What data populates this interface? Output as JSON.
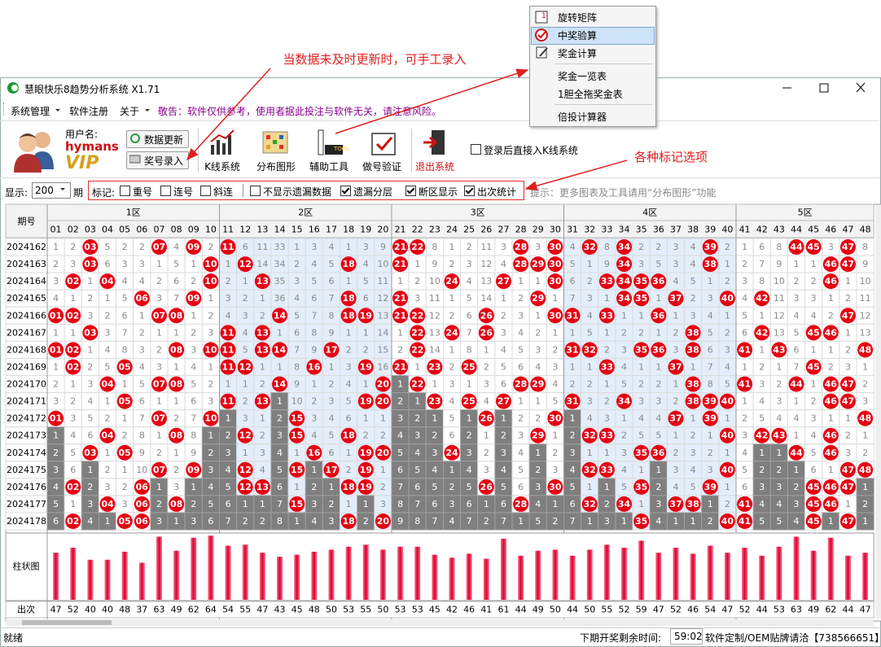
{
  "window": {
    "title": "慧眼快乐8趋势分析系统 X1.71"
  },
  "menu": [
    "系统管理",
    "软件注册",
    "关于"
  ],
  "notice": "敬告：软件仅供参考，使用者据此投注与软件无关，请注意风险。",
  "user": {
    "label": "用户名:",
    "name": "hymans",
    "level": "VIP"
  },
  "buttons": [
    "数据更新",
    "奖号录入"
  ],
  "tools": [
    "K线系统",
    "分布图形",
    "辅助工具",
    "做号验证",
    "退出系统"
  ],
  "login_option": {
    "label": "登录后直接入K线系统",
    "checked": false
  },
  "display": {
    "label": "显示:",
    "periods": 200,
    "unit": "期"
  },
  "marks": {
    "label": "标记:",
    "options": [
      {
        "label": "重号",
        "checked": false
      },
      {
        "label": "连号",
        "checked": false
      },
      {
        "label": "斜连",
        "checked": false
      }
    ]
  },
  "view_options": [
    {
      "label": "不显示遗漏数据",
      "checked": false
    },
    {
      "label": "遗漏分层",
      "checked": true
    },
    {
      "label": "断区显示",
      "checked": true
    },
    {
      "label": "出次统计",
      "checked": true
    }
  ],
  "hint": "提示：更多图表及工具请用“分布图形”功能",
  "table": {
    "period_header": "期号",
    "zones": [
      "1区",
      "2区",
      "3区",
      "4区",
      "5区"
    ],
    "columns": [
      "01",
      "02",
      "03",
      "04",
      "05",
      "06",
      "07",
      "08",
      "09",
      "10",
      "11",
      "12",
      "13",
      "14",
      "15",
      "16",
      "17",
      "18",
      "19",
      "20",
      "21",
      "22",
      "23",
      "24",
      "25",
      "26",
      "27",
      "28",
      "29",
      "30",
      "31",
      "32",
      "33",
      "34",
      "35",
      "36",
      "37",
      "38",
      "39",
      "40",
      "41",
      "42",
      "43",
      "44",
      "45",
      "46",
      "47",
      "48"
    ],
    "rows": [
      {
        "period": 2024162,
        "cells": [
          1,
          2,
          "03",
          5,
          2,
          2,
          "07",
          4,
          "09",
          2,
          "11",
          6,
          11,
          33,
          1,
          3,
          4,
          1,
          3,
          9,
          "21",
          "22",
          8,
          1,
          2,
          11,
          3,
          "28",
          3,
          "30",
          4,
          "32",
          8,
          "34",
          2,
          2,
          3,
          4,
          "39",
          2,
          1,
          6,
          8,
          "44",
          "45",
          3,
          "47",
          8
        ]
      },
      {
        "period": 2024163,
        "cells": [
          2,
          3,
          "03",
          6,
          3,
          3,
          1,
          5,
          1,
          "10",
          1,
          "12",
          14,
          34,
          2,
          4,
          5,
          "18",
          4,
          10,
          "21",
          1,
          9,
          2,
          3,
          12,
          4,
          "28",
          "29",
          "30",
          5,
          1,
          9,
          "34",
          3,
          5,
          3,
          4,
          "38",
          1,
          2,
          7,
          9,
          1,
          1,
          "46",
          "47",
          9
        ]
      },
      {
        "period": 2024164,
        "cells": [
          3,
          "02",
          1,
          "04",
          4,
          4,
          2,
          6,
          2,
          "10",
          2,
          1,
          "13",
          35,
          3,
          5,
          6,
          1,
          5,
          11,
          1,
          2,
          10,
          "24",
          4,
          13,
          "27",
          1,
          1,
          "30",
          6,
          2,
          "33",
          "34",
          "35",
          "36",
          4,
          5,
          1,
          2,
          3,
          8,
          10,
          2,
          2,
          "46",
          1,
          10
        ]
      },
      {
        "period": 2024165,
        "cells": [
          4,
          1,
          2,
          1,
          5,
          "06",
          3,
          7,
          "09",
          1,
          3,
          2,
          1,
          36,
          4,
          6,
          7,
          "18",
          6,
          12,
          "21",
          3,
          11,
          1,
          5,
          14,
          1,
          2,
          "29",
          1,
          7,
          3,
          1,
          "34",
          "35",
          1,
          "37",
          2,
          3,
          "40",
          4,
          "42",
          11,
          3,
          3,
          1,
          2,
          11
        ]
      },
      {
        "period": 2024166,
        "cells": [
          "01",
          "02",
          3,
          2,
          6,
          1,
          "07",
          "08",
          1,
          2,
          4,
          3,
          2,
          "14",
          5,
          7,
          8,
          "18",
          "19",
          13,
          "21",
          "22",
          12,
          2,
          6,
          "26",
          2,
          3,
          1,
          "30",
          "31",
          4,
          "33",
          1,
          1,
          "36",
          1,
          3,
          4,
          1,
          5,
          1,
          12,
          4,
          4,
          2,
          "47",
          12
        ]
      },
      {
        "period": 2024167,
        "cells": [
          1,
          1,
          "03",
          3,
          7,
          2,
          1,
          1,
          2,
          3,
          "11",
          4,
          "13",
          1,
          6,
          8,
          9,
          1,
          1,
          14,
          1,
          "22",
          13,
          "24",
          7,
          "26",
          3,
          4,
          2,
          1,
          1,
          5,
          1,
          2,
          2,
          1,
          2,
          "38",
          5,
          2,
          6,
          "42",
          13,
          5,
          "45",
          "46",
          1,
          13
        ]
      },
      {
        "period": 2024168,
        "cells": [
          "01",
          "02",
          1,
          4,
          8,
          3,
          2,
          "08",
          3,
          "10",
          "11",
          5,
          "13",
          "14",
          7,
          9,
          "17",
          2,
          2,
          15,
          2,
          "22",
          14,
          1,
          8,
          1,
          4,
          5,
          3,
          2,
          "31",
          "32",
          2,
          3,
          "35",
          "36",
          3,
          "38",
          6,
          3,
          "41",
          1,
          "43",
          6,
          1,
          1,
          2,
          "48"
        ]
      },
      {
        "period": 2024169,
        "cells": [
          1,
          "02",
          2,
          5,
          "05",
          4,
          3,
          1,
          4,
          1,
          "11",
          "12",
          1,
          1,
          8,
          "16",
          1,
          3,
          "19",
          16,
          "21",
          1,
          "23",
          2,
          "25",
          2,
          5,
          6,
          4,
          3,
          1,
          1,
          "33",
          4,
          1,
          1,
          "37",
          1,
          7,
          4,
          1,
          2,
          1,
          7,
          "45",
          2,
          3,
          1
        ]
      },
      {
        "period": 2024170,
        "cells": [
          2,
          1,
          3,
          "04",
          1,
          5,
          "07",
          "08",
          5,
          2,
          1,
          1,
          2,
          "14",
          9,
          1,
          2,
          4,
          1,
          "20",
          1,
          "22",
          1,
          3,
          1,
          3,
          6,
          "28",
          "29",
          4,
          2,
          2,
          1,
          5,
          2,
          2,
          1,
          "38",
          8,
          5,
          "41",
          3,
          2,
          "44",
          1,
          "46",
          "47",
          2
        ]
      },
      {
        "period": 2024171,
        "cells": [
          3,
          2,
          4,
          1,
          "05",
          6,
          1,
          1,
          6,
          3,
          "11",
          2,
          "13",
          1,
          10,
          2,
          3,
          5,
          "19",
          "20",
          2,
          1,
          "23",
          4,
          "25",
          4,
          "27",
          1,
          1,
          5,
          "31",
          3,
          2,
          "34",
          3,
          3,
          2,
          "38",
          "39",
          "40",
          1,
          4,
          3,
          1,
          2,
          "46",
          "47",
          3
        ]
      },
      {
        "period": 2024172,
        "cells": [
          "01",
          3,
          5,
          2,
          1,
          7,
          "07",
          2,
          7,
          "10",
          1,
          3,
          1,
          2,
          "15",
          3,
          4,
          6,
          1,
          1,
          3,
          2,
          1,
          5,
          1,
          "26",
          1,
          2,
          2,
          "30",
          1,
          4,
          3,
          1,
          4,
          4,
          "37",
          1,
          "39",
          1,
          2,
          5,
          4,
          4,
          3,
          1,
          1,
          "48"
        ]
      },
      {
        "period": 2024173,
        "cells": [
          1,
          4,
          6,
          "04",
          2,
          8,
          1,
          "08",
          8,
          1,
          2,
          "12",
          2,
          3,
          "15",
          4,
          5,
          "18",
          2,
          2,
          4,
          3,
          2,
          6,
          2,
          1,
          2,
          3,
          "29",
          1,
          2,
          "32",
          "33",
          2,
          5,
          5,
          1,
          2,
          1,
          "40",
          3,
          "42",
          "43",
          1,
          4,
          "46",
          2,
          1
        ]
      },
      {
        "period": 2024174,
        "cells": [
          2,
          5,
          "03",
          1,
          "05",
          9,
          2,
          1,
          9,
          2,
          3,
          1,
          3,
          4,
          1,
          "16",
          6,
          1,
          "19",
          "20",
          5,
          4,
          3,
          "24",
          3,
          2,
          3,
          4,
          1,
          2,
          3,
          1,
          1,
          3,
          "35",
          "36",
          2,
          3,
          2,
          1,
          4,
          1,
          1,
          "44",
          5,
          "46",
          3,
          2
        ]
      },
      {
        "period": 2024175,
        "cells": [
          3,
          6,
          1,
          2,
          1,
          10,
          "07",
          2,
          "09",
          3,
          4,
          "12",
          4,
          5,
          "15",
          1,
          "17",
          2,
          "19",
          1,
          6,
          5,
          4,
          1,
          4,
          3,
          4,
          5,
          2,
          3,
          4,
          "32",
          "33",
          4,
          1,
          1,
          3,
          4,
          3,
          "40",
          5,
          2,
          2,
          1,
          6,
          1,
          "47",
          "48"
        ]
      },
      {
        "period": 2024176,
        "cells": [
          4,
          "02",
          2,
          3,
          2,
          "06",
          1,
          3,
          1,
          4,
          5,
          "12",
          "13",
          6,
          1,
          2,
          1,
          "18",
          "19",
          2,
          7,
          6,
          5,
          2,
          5,
          "26",
          5,
          6,
          3,
          "30",
          5,
          1,
          1,
          5,
          "35",
          2,
          4,
          5,
          "39",
          1,
          6,
          3,
          3,
          2,
          "45",
          "46",
          "47",
          1
        ]
      },
      {
        "period": 2024177,
        "cells": [
          5,
          1,
          3,
          "04",
          3,
          "06",
          2,
          "08",
          2,
          5,
          6,
          1,
          1,
          7,
          "15",
          3,
          2,
          1,
          1,
          3,
          8,
          7,
          6,
          3,
          6,
          1,
          6,
          "28",
          4,
          1,
          6,
          "32",
          2,
          "34",
          1,
          3,
          "37",
          "38",
          1,
          2,
          "41",
          4,
          4,
          3,
          "45",
          "46",
          1,
          2
        ]
      },
      {
        "period": 2024178,
        "cells": [
          6,
          "02",
          4,
          1,
          "05",
          "06",
          3,
          1,
          3,
          6,
          7,
          2,
          2,
          8,
          1,
          4,
          3,
          "18",
          2,
          "20",
          9,
          8,
          7,
          4,
          7,
          2,
          7,
          1,
          5,
          2,
          7,
          1,
          3,
          1,
          "35",
          4,
          1,
          1,
          2,
          "40",
          "41",
          5,
          5,
          4,
          "45",
          1,
          "47",
          1
        ]
      }
    ]
  },
  "chart": {
    "label": "柱状图",
    "count_label": "出次",
    "ylim": [
      0,
      65
    ],
    "counts": [
      47,
      52,
      40,
      40,
      48,
      37,
      63,
      49,
      62,
      64,
      54,
      55,
      47,
      43,
      45,
      48,
      50,
      53,
      55,
      50,
      53,
      53,
      45,
      42,
      46,
      41,
      61,
      44,
      49,
      50,
      44,
      50,
      55,
      52,
      59,
      47,
      52,
      46,
      54,
      47,
      52,
      44,
      53,
      63,
      49,
      62,
      44,
      47
    ]
  },
  "status": {
    "ready": "就绪",
    "countdown_label": "下期开奖剩余时间:",
    "countdown": "59:02",
    "contact": "软件定制/OEM贴牌请洽【738566651】"
  },
  "popup": {
    "items": [
      "旋转矩阵",
      "中奖验算",
      "奖金计算",
      "奖金一览表",
      "1胆全拖奖金表",
      "倍投计算器"
    ],
    "selected": 1
  },
  "annotations": [
    "当数据未及时更新时，可手工录入",
    "各种标记选项"
  ]
}
